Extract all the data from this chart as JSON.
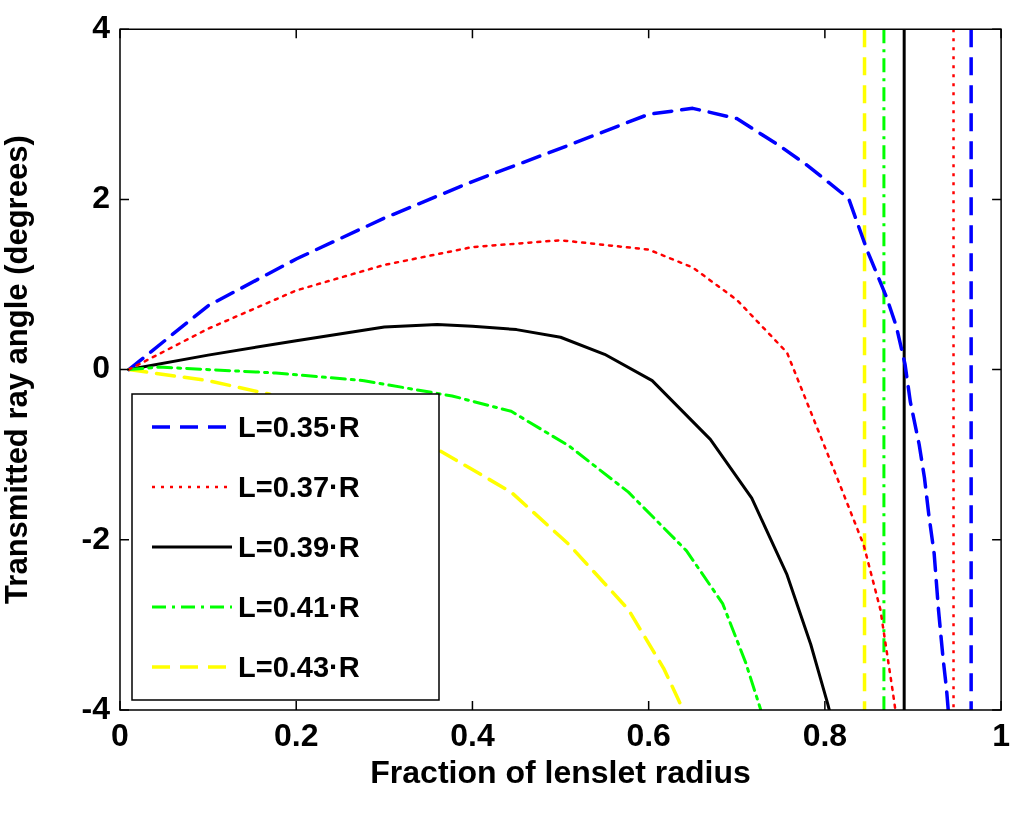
{
  "chart_data": {
    "type": "line",
    "xlabel": "Fraction of lenslet radius",
    "ylabel": "Transmitted ray angle (degrees)",
    "xlim": [
      0,
      1
    ],
    "ylim": [
      -4,
      4
    ],
    "xticks": [
      0,
      0.2,
      0.4,
      0.6,
      0.8,
      1
    ],
    "yticks": [
      -4,
      -2,
      0,
      2,
      4
    ],
    "grid": false,
    "legend": "bottom left",
    "marker": "none",
    "series": [
      {
        "name": "L=0.35·R",
        "color": "#0000ff",
        "line_style": "dashed",
        "x": [
          0.01,
          0.1,
          0.2,
          0.3,
          0.4,
          0.5,
          0.6,
          0.65,
          0.7,
          0.75,
          0.78,
          0.827,
          0.848,
          0.87,
          0.881,
          0.891,
          0.897,
          0.907,
          0.913,
          0.918,
          0.924,
          0.929,
          0.934,
          0.938,
          0.94
        ],
        "values": [
          0,
          0.75,
          1.3,
          1.78,
          2.21,
          2.6,
          3,
          3.07,
          2.95,
          2.62,
          2.4,
          2.01,
          1.4,
          0.85,
          0.51,
          0.06,
          -0.38,
          -0.88,
          -1.27,
          -1.71,
          -2.16,
          -2.83,
          -3.38,
          -3.75,
          -4
        ]
      },
      {
        "name": "L=0.37·R",
        "color": "#ff0000",
        "line_style": "dotted",
        "x": [
          0.01,
          0.1,
          0.2,
          0.3,
          0.4,
          0.5,
          0.6,
          0.65,
          0.7,
          0.757,
          0.81,
          0.844,
          0.863,
          0.877,
          0.88
        ],
        "values": [
          0,
          0.48,
          0.93,
          1.23,
          1.44,
          1.52,
          1.41,
          1.2,
          0.82,
          0.2,
          -1.17,
          -2.06,
          -2.82,
          -3.78,
          -4
        ]
      },
      {
        "name": "L=0.39·R",
        "color": "#000000",
        "line_style": "solid",
        "x": [
          0.01,
          0.1,
          0.2,
          0.3,
          0.36,
          0.4,
          0.45,
          0.5,
          0.55,
          0.604,
          0.67,
          0.717,
          0.757,
          0.784,
          0.803,
          0.805
        ],
        "values": [
          0,
          0.17,
          0.34,
          0.5,
          0.53,
          0.51,
          0.47,
          0.38,
          0.18,
          -0.13,
          -0.82,
          -1.51,
          -2.41,
          -3.23,
          -3.92,
          -4
        ]
      },
      {
        "name": "L=0.41·R",
        "color": "#00ff00",
        "line_style": "dashdot",
        "x": [
          0.01,
          0.044,
          0.177,
          0.277,
          0.377,
          0.444,
          0.51,
          0.577,
          0.643,
          0.684,
          0.71,
          0.727
        ],
        "values": [
          0,
          0.03,
          -0.04,
          -0.13,
          -0.31,
          -0.49,
          -0.9,
          -1.44,
          -2.13,
          -2.75,
          -3.44,
          -3.99
        ]
      },
      {
        "name": "L=0.43·R",
        "color": "#ffff00",
        "line_style": "dashed",
        "x": [
          0.01,
          0.1,
          0.17,
          0.27,
          0.364,
          0.444,
          0.51,
          0.577,
          0.617,
          0.637
        ],
        "values": [
          0,
          -0.13,
          -0.29,
          null,
          -0.96,
          -1.44,
          -2.06,
          -2.82,
          -3.51,
          -3.95
        ]
      }
    ],
    "ref_lines": [
      {
        "axis": "x",
        "value": 0.845,
        "color": "#ffff00",
        "line_style": "dashed"
      },
      {
        "axis": "x",
        "value": 0.867,
        "color": "#00ff00",
        "line_style": "dashdot"
      },
      {
        "axis": "x",
        "value": 0.89,
        "color": "#000000",
        "line_style": "solid"
      },
      {
        "axis": "x",
        "value": 0.946,
        "color": "#ff0000",
        "line_style": "dotted"
      },
      {
        "axis": "x",
        "value": 0.966,
        "color": "#0000ff",
        "line_style": "dashed"
      }
    ]
  }
}
